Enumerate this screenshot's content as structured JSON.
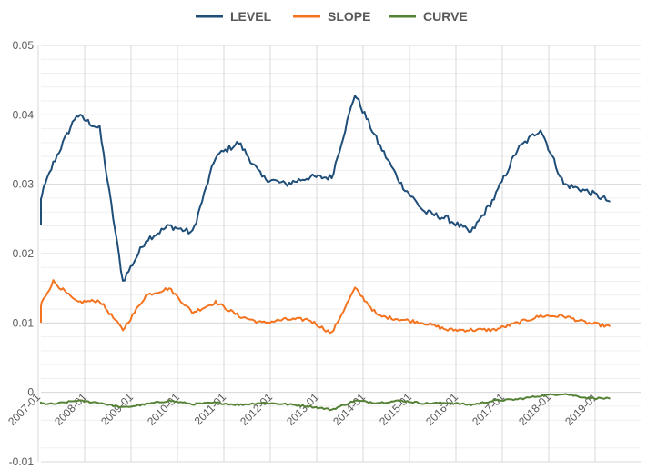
{
  "chart_data": {
    "type": "line",
    "title": "",
    "xlabel": "",
    "ylabel": "",
    "ylim": [
      -0.01,
      0.05
    ],
    "y_ticks": [
      "-0.01",
      "0",
      "0.01",
      "0.02",
      "0.03",
      "0.04",
      "0.05"
    ],
    "x_tick_labels": [
      "2007-01",
      "2008-01",
      "2009-01",
      "2010-01",
      "2011-01",
      "2012-01",
      "2013-01",
      "2014-01",
      "2015-01",
      "2016-01",
      "2017-01",
      "2018-01",
      "2019-01"
    ],
    "grid": true,
    "legend_position": "top",
    "x": [
      "2007-01",
      "2007-07",
      "2008-01",
      "2008-07",
      "2009-01",
      "2009-07",
      "2010-01",
      "2010-07",
      "2011-01",
      "2011-07",
      "2012-01",
      "2012-07",
      "2013-01",
      "2013-07",
      "2014-01",
      "2014-07",
      "2015-01",
      "2015-07",
      "2016-01",
      "2016-07",
      "2017-01",
      "2017-07",
      "2018-01",
      "2018-07",
      "2019-01",
      "2019-07"
    ],
    "series": [
      {
        "name": "LEVEL",
        "color": "#1f4e79",
        "values": [
          0.024,
          0.033,
          0.04,
          0.038,
          0.016,
          0.022,
          0.024,
          0.023,
          0.034,
          0.036,
          0.031,
          0.03,
          0.031,
          0.031,
          0.043,
          0.036,
          0.03,
          0.026,
          0.025,
          0.023,
          0.028,
          0.035,
          0.038,
          0.03,
          0.029,
          0.0275
        ]
      },
      {
        "name": "SLOPE",
        "color": "#f4731f",
        "values": [
          0.0098,
          0.016,
          0.013,
          0.0132,
          0.009,
          0.014,
          0.015,
          0.0115,
          0.013,
          0.011,
          0.01,
          0.0105,
          0.0105,
          0.0085,
          0.015,
          0.011,
          0.0105,
          0.01,
          0.009,
          0.009,
          0.009,
          0.01,
          0.011,
          0.011,
          0.01,
          0.0095
        ]
      },
      {
        "name": "CURVE",
        "color": "#548235",
        "values": [
          -0.0015,
          -0.0017,
          -0.0012,
          -0.0015,
          -0.0022,
          -0.0017,
          -0.0012,
          -0.0017,
          -0.0015,
          -0.0018,
          -0.0015,
          -0.0017,
          -0.002,
          -0.0025,
          -0.0012,
          -0.0015,
          -0.0012,
          -0.0016,
          -0.0015,
          -0.0018,
          -0.0012,
          -0.001,
          -0.0005,
          -0.0002,
          -0.0008,
          -0.0009
        ]
      }
    ]
  }
}
